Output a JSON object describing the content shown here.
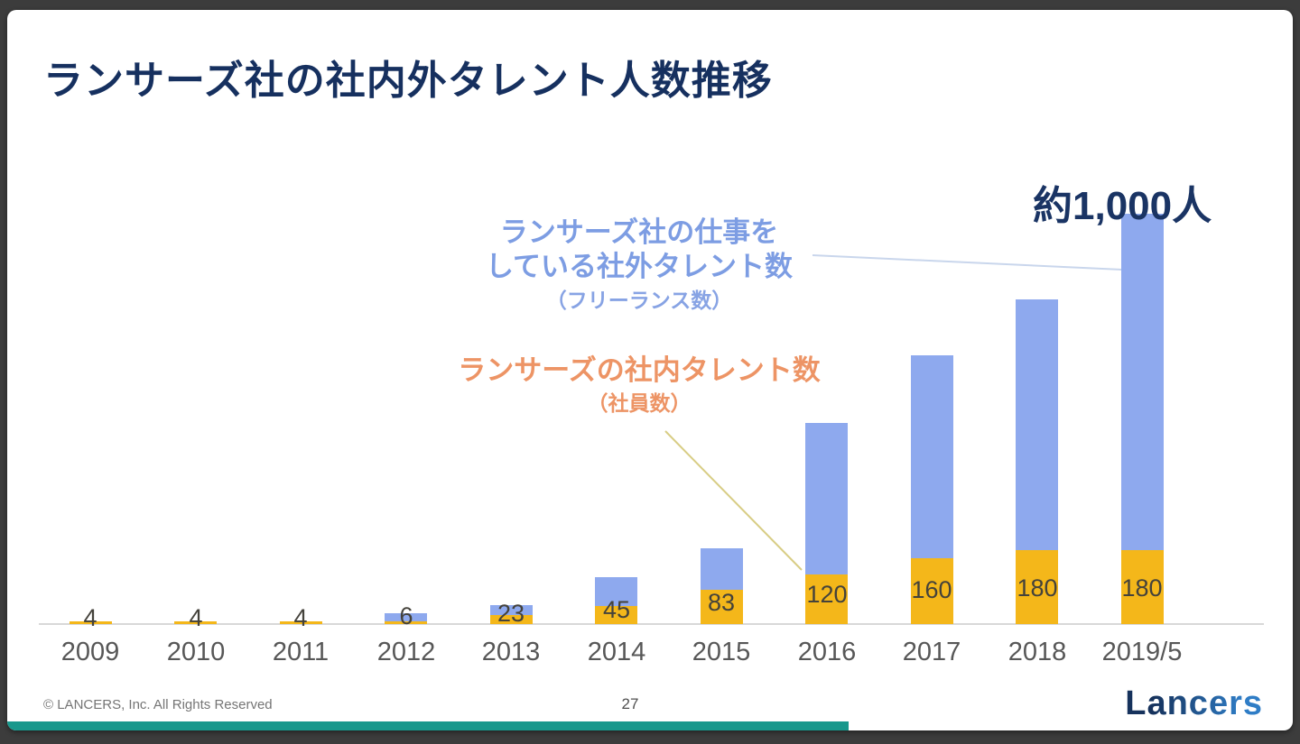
{
  "slide": {
    "title": "ランサーズ社の社内外タレント人数推移",
    "annotation_total": "約1,000人",
    "legend_external": {
      "line1": "ランサーズ社の仕事を",
      "line2": "している社外タレント数",
      "line3": "（フリーランス数）"
    },
    "legend_internal": {
      "line1": "ランサーズの社内タレント数",
      "line2": "（社員数）"
    },
    "footer": {
      "copyright": "© LANCERS, Inc. All Rights Reserved",
      "page_number": "27",
      "logo_text": "Lancers"
    }
  },
  "chart_data": {
    "type": "bar",
    "stacked": true,
    "grid": false,
    "y_axis_shown": false,
    "categories": [
      "2009",
      "2010",
      "2011",
      "2012",
      "2013",
      "2014",
      "2015",
      "2016",
      "2017",
      "2018",
      "2019/5"
    ],
    "series": [
      {
        "name": "ランサーズの社内タレント数（社員数）",
        "role": "internal-talent-employees",
        "color": "#f4b71a",
        "values": [
          4,
          4,
          4,
          6,
          23,
          45,
          83,
          120,
          160,
          180,
          180
        ],
        "data_labels": [
          "4",
          "4",
          "4",
          "6",
          "23",
          "45",
          "83",
          "120",
          "160",
          "180",
          "180"
        ]
      },
      {
        "name": "ランサーズ社の仕事をしている社外タレント数（フリーランス数）",
        "role": "external-talent-freelancers",
        "color": "#8ea9ee",
        "values_estimated_from_bar_heights": [
          0,
          0,
          0,
          20,
          25,
          70,
          100,
          370,
          495,
          610,
          820
        ],
        "data_labels": []
      }
    ],
    "total_annotation": {
      "category": "2019/5",
      "text": "約1,000人",
      "approx_total": 1000
    },
    "title": "ランサーズ社の社内外タレント人数推移"
  },
  "colors": {
    "frame_background": "#3c3c3c",
    "slide_background": "#ffffff",
    "title_navy": "#16305f",
    "bar_internal_orange": "#f4b71a",
    "bar_external_blue": "#8ea9ee",
    "legend_external_blue": "#7d9de3",
    "legend_internal_orange": "#ed9465",
    "axis_gray": "#d8d8d8",
    "teal_footer_bar": "#18988c",
    "connector_blue": "#c9d6ec",
    "connector_yellow": "#d8cd85"
  }
}
